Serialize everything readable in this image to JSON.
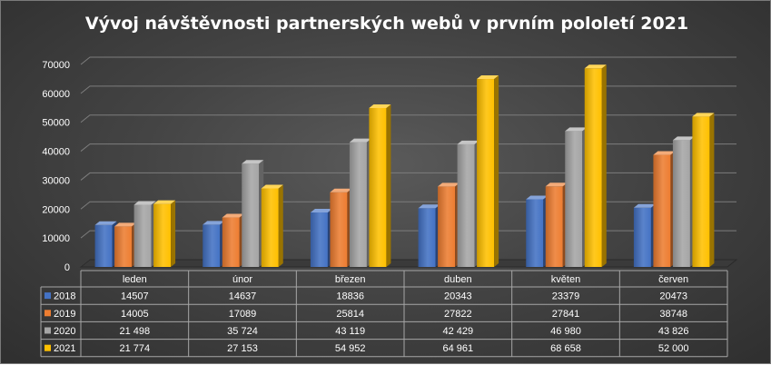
{
  "chart_data": {
    "type": "bar",
    "title": "Vývoj návštěvnosti partnerských webů v prvním pololetí 2021",
    "categories": [
      "leden",
      "únor",
      "březen",
      "duben",
      "květen",
      "červen"
    ],
    "ylim": [
      0,
      70000
    ],
    "yticks": [
      "0",
      "10000",
      "20000",
      "30000",
      "40000",
      "50000",
      "60000",
      "70000"
    ],
    "ytick_values": [
      0,
      10000,
      20000,
      30000,
      40000,
      50000,
      60000,
      70000
    ],
    "grid": true,
    "legend": "data-table-below",
    "series": [
      {
        "name": "2018",
        "color": "#4472C4",
        "values": [
          14507,
          14637,
          18836,
          20343,
          23379,
          20473
        ],
        "labels": [
          "14507",
          "14637",
          "18836",
          "20343",
          "23379",
          "20473"
        ]
      },
      {
        "name": "2019",
        "color": "#ED7D31",
        "values": [
          14005,
          17089,
          25814,
          27822,
          27841,
          38748
        ],
        "labels": [
          "14005",
          "17089",
          "25814",
          "27822",
          "27841",
          "38748"
        ]
      },
      {
        "name": "2020",
        "color": "#A5A5A5",
        "values": [
          21498,
          35724,
          43119,
          42429,
          46980,
          43826
        ],
        "labels": [
          "21 498",
          "35 724",
          "43 119",
          "42 429",
          "46 980",
          "43 826"
        ]
      },
      {
        "name": "2021",
        "color": "#FFC000",
        "values": [
          21774,
          27153,
          54952,
          64961,
          68658,
          52000
        ],
        "labels": [
          "21 774",
          "27 153",
          "54 952",
          "64 961",
          "68 658",
          "52 000"
        ]
      }
    ]
  }
}
